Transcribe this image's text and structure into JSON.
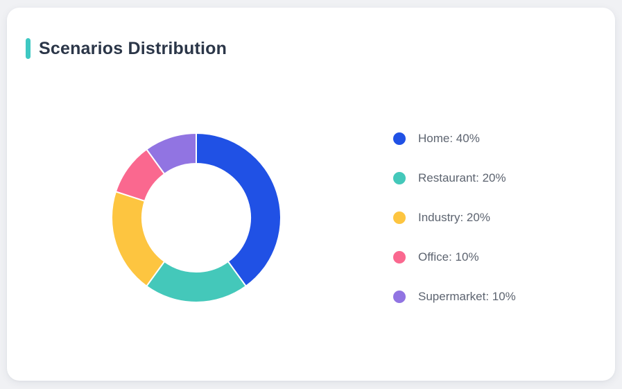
{
  "page": {
    "background": "#f0f1f4"
  },
  "card": {
    "title": "Scenarios Distribution",
    "accent_color": "#3ec8c2",
    "background": "#ffffff"
  },
  "chart_data": {
    "type": "pie",
    "subtype": "donut",
    "title": "Scenarios Distribution",
    "categories": [
      "Home",
      "Restaurant",
      "Industry",
      "Office",
      "Supermarket"
    ],
    "values": [
      40,
      20,
      20,
      10,
      10
    ],
    "unit": "%",
    "colors": [
      "#2051e5",
      "#44c8ba",
      "#fdc540",
      "#fa688f",
      "#9174e2"
    ],
    "start_angle_deg": 0,
    "direction": "clockwise",
    "inner_radius_ratio": 0.64,
    "segment_gap_color": "#ffffff",
    "legend_position": "right",
    "legend_labels": [
      "Home: 40%",
      "Restaurant: 20%",
      "Industry: 20%",
      "Office: 10%",
      "Supermarket: 10%"
    ]
  }
}
